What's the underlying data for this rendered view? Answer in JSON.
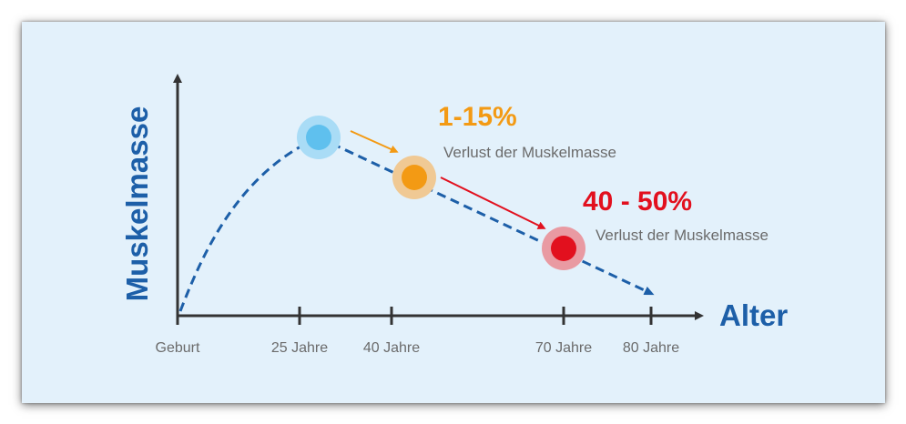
{
  "chart_data": {
    "type": "line",
    "title": "",
    "xlabel": "Alter",
    "ylabel": "Muskelmasse",
    "x_ticks": [
      "Geburt",
      "25 Jahre",
      "40 Jahre",
      "70 Jahre",
      "80 Jahre"
    ],
    "series": [
      {
        "values_description_none": "",
        "points": [
          [
            0,
            0
          ],
          [
            25,
            1.0
          ],
          [
            40,
            0.8
          ],
          [
            70,
            0.4
          ],
          [
            80,
            0.15
          ]
        ]
      }
    ],
    "markers": [
      {
        "x": 25,
        "color": "#5fc0ee"
      },
      {
        "x": 40,
        "color": "#f39a14"
      },
      {
        "x": 70,
        "color": "#e2101e"
      }
    ],
    "annotations": [
      {
        "percent": "1-15%",
        "text": "Verlust der Muskelmasse",
        "color": "#f39a14"
      },
      {
        "percent": "40 - 50%",
        "text": "Verlust der Muskelmasse",
        "color": "#e2101e"
      }
    ],
    "grid": false
  }
}
